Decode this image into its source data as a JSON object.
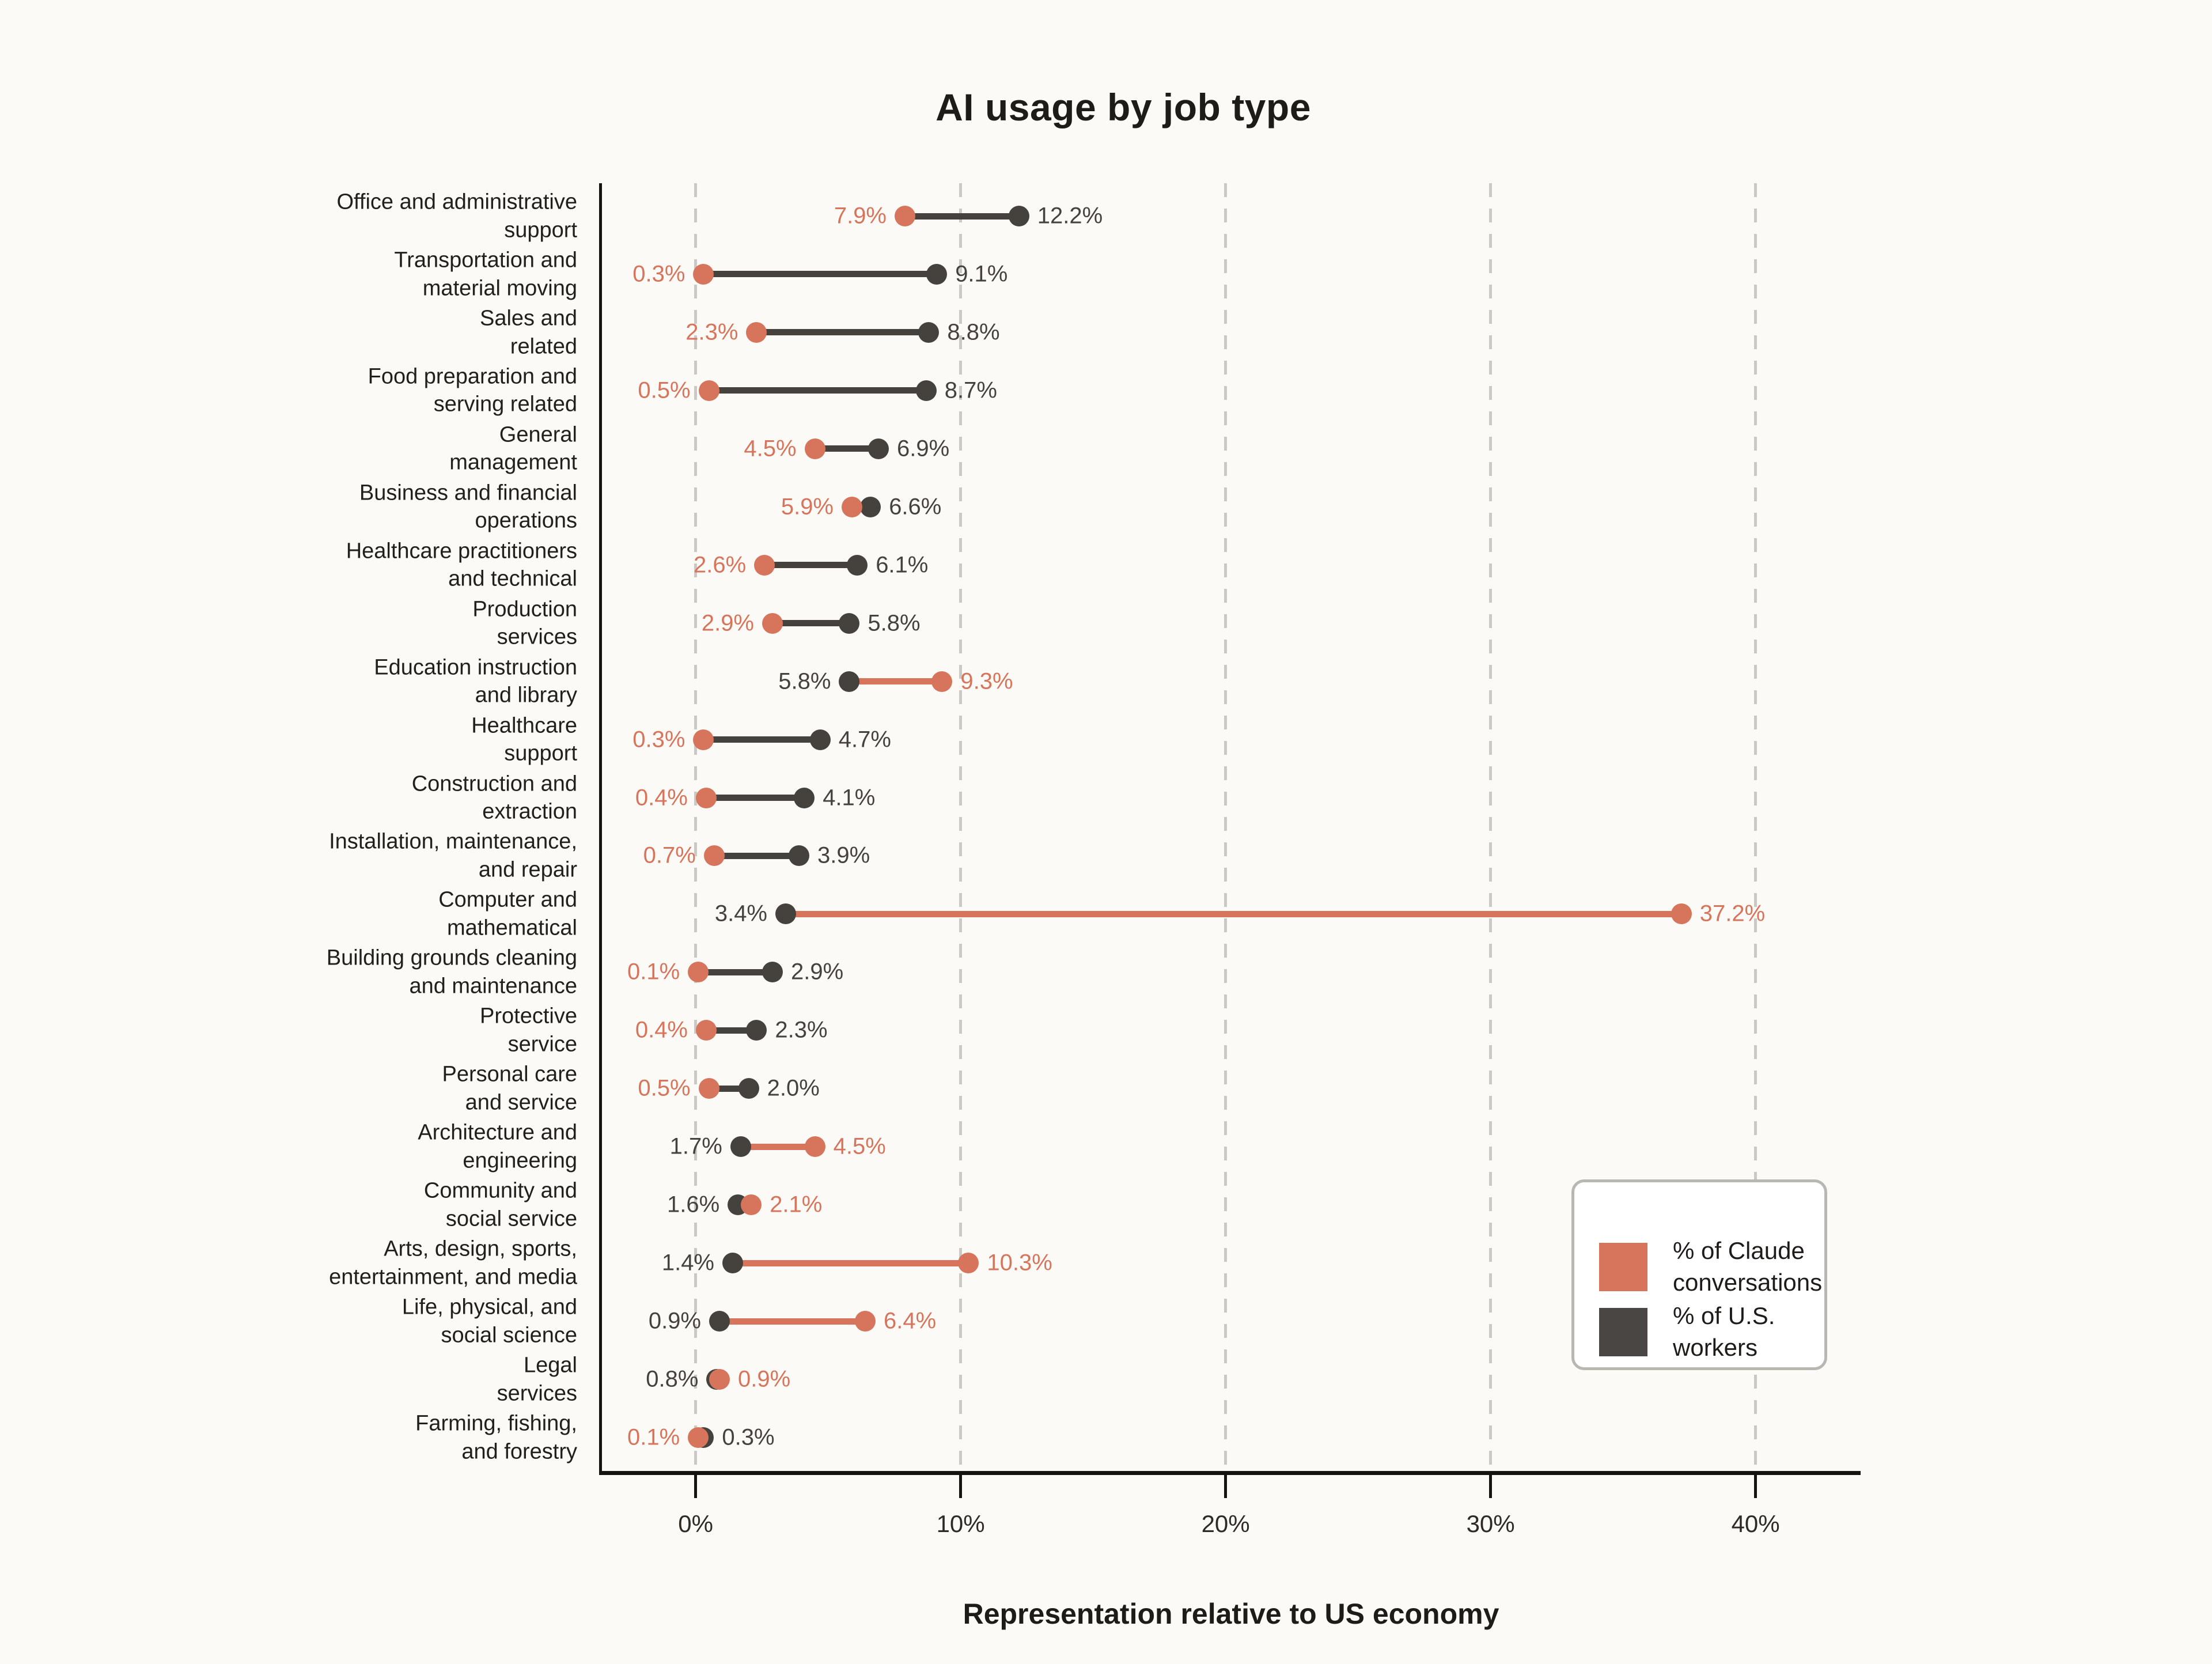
{
  "title": "AI usage by job type",
  "xlabel": "Representation relative to US economy",
  "colors": {
    "claude": "#D6755B",
    "workers": "#45423E",
    "claude_text": "#D170533",
    "grid": "#CBC9C4",
    "axis": "#16140F",
    "background": "#FBFAF6",
    "legend_border": "#B9B7B2",
    "legend_swatch_workers": "#4A4643"
  },
  "legend": {
    "items": [
      {
        "label": "% of Claude\nconversations",
        "series": "claude",
        "color": "#D6755B"
      },
      {
        "label": "% of U.S.\nworkers",
        "series": "workers",
        "color": "#4A4643"
      }
    ]
  },
  "axis": {
    "tick_labels": [
      "0%",
      "10%",
      "20%",
      "30%",
      "40%"
    ],
    "tick_values": [
      0,
      10,
      20,
      30,
      40
    ],
    "domain_min": -3.6,
    "domain_max": 43.9
  },
  "chart_data": {
    "type": "scatter",
    "subtype": "dumbbell",
    "orientation": "horizontal",
    "title": "AI usage by job type",
    "xlabel": "Representation relative to US economy",
    "xlim": [
      -3.6,
      43.9
    ],
    "grid": "vertical-dashed",
    "legend_position": "lower-right",
    "categories": [
      "Office and administrative\nsupport",
      "Transportation and\nmaterial moving",
      "Sales and\nrelated",
      "Food preparation and\nserving related",
      "General\nmanagement",
      "Business and financial\noperations",
      "Healthcare practitioners\nand technical",
      "Production\nservices",
      "Education instruction\nand library",
      "Healthcare\nsupport",
      "Construction and\nextraction",
      "Installation, maintenance,\nand repair",
      "Computer and\nmathematical",
      "Building grounds cleaning\nand maintenance",
      "Protective\nservice",
      "Personal care\nand service",
      "Architecture and\nengineering",
      "Community and\nsocial service",
      "Arts, design, sports,\nentertainment, and media",
      "Life, physical, and\nsocial science",
      "Legal\nservices",
      "Farming, fishing,\nand forestry"
    ],
    "series": [
      {
        "name": "% of Claude conversations",
        "color": "#D6755B",
        "values": [
          7.9,
          0.3,
          2.3,
          0.5,
          4.5,
          5.9,
          2.6,
          2.9,
          9.3,
          0.3,
          0.4,
          0.7,
          37.2,
          0.1,
          0.4,
          0.5,
          4.5,
          2.1,
          10.3,
          6.4,
          0.9,
          0.1
        ],
        "labels": [
          "7.9%",
          "0.3%",
          "2.3%",
          "0.5%",
          "4.5%",
          "5.9%",
          "2.6%",
          "2.9%",
          "9.3%",
          "0.3%",
          "0.4%",
          "0.7%",
          "37.2%",
          "0.1%",
          "0.4%",
          "0.5%",
          "4.5%",
          "2.1%",
          "10.3%",
          "6.4%",
          "0.9%",
          "0.1%"
        ]
      },
      {
        "name": "% of U.S. workers",
        "color": "#45423E",
        "values": [
          12.2,
          9.1,
          8.8,
          8.7,
          6.9,
          6.6,
          6.1,
          5.8,
          5.8,
          4.7,
          4.1,
          3.9,
          3.4,
          2.9,
          2.3,
          2.0,
          1.7,
          1.6,
          1.4,
          0.9,
          0.8,
          0.3
        ],
        "labels": [
          "12.2%",
          "9.1%",
          "8.8%",
          "8.7%",
          "6.9%",
          "6.6%",
          "6.1%",
          "5.8%",
          "5.8%",
          "4.7%",
          "4.1%",
          "3.9%",
          "3.4%",
          "2.9%",
          "2.3%",
          "2.0%",
          "1.7%",
          "1.6%",
          "1.4%",
          "0.9%",
          "0.8%",
          "0.3%"
        ]
      }
    ]
  }
}
